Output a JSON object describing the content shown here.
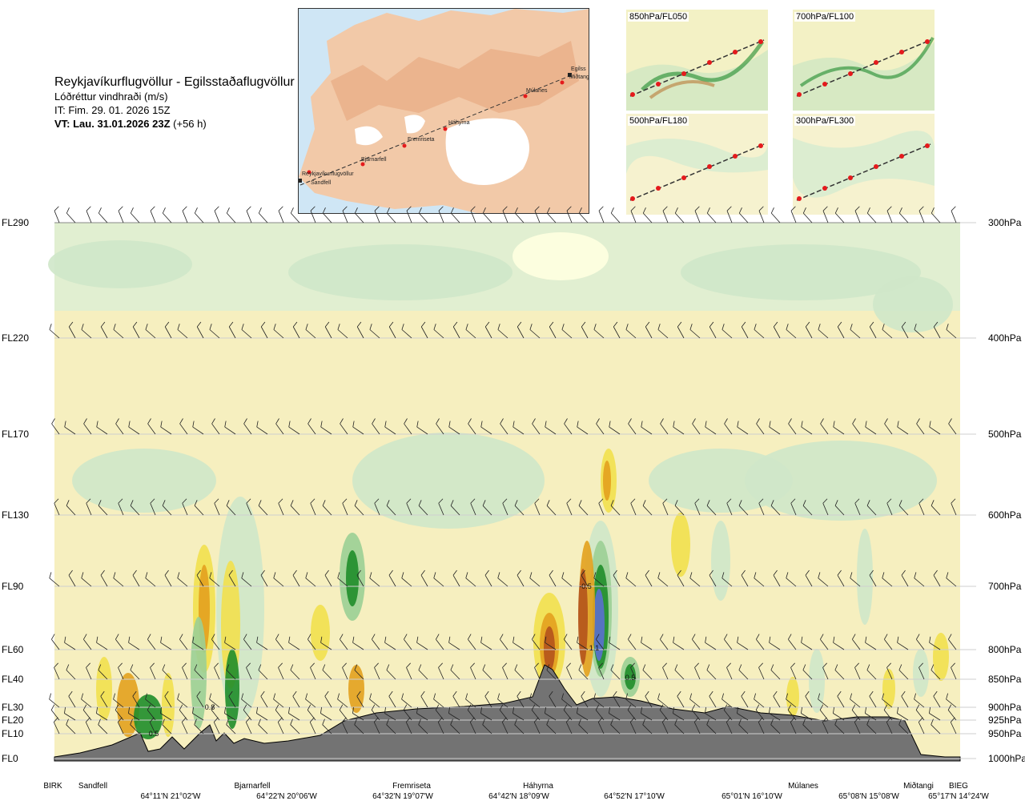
{
  "header": {
    "title": "Reykjavíkurflugvöllur - Egilsstaðaflugvöllur",
    "variable": "Lóðréttur vindhraði (m/s)",
    "init_time": "IT: Fim. 29. 01. 2026 15Z",
    "valid_time_bold": "VT: Lau. 31.01.2026 23Z",
    "valid_time_lead": "(+56 h)"
  },
  "map": {
    "points": [
      "Reykjavíkurflugvöllur",
      "Sandfell",
      "Bjarnarfell",
      "Fremriseta",
      "Háhyrna",
      "Múlanes",
      "Miðtangi",
      "Egilsstaðaflugvöllur"
    ],
    "visible_labels": [
      "Reykjavíkurflugvöllur",
      "Sandfell",
      "Bjarnarfell",
      "Fremriseta",
      "Háhyrna",
      "Múlanes",
      "Egilss",
      "Miðtangi"
    ]
  },
  "level_panels": [
    {
      "label": "850hPa/FL050"
    },
    {
      "label": "700hPa/FL100"
    },
    {
      "label": "500hPa/FL180"
    },
    {
      "label": "300hPa/FL300"
    }
  ],
  "chart_data": {
    "type": "heatmap",
    "title": "Reykjavíkurflugvöllur - Egilsstaðaflugvöllur",
    "field": "Lóðréttur vindhraði (m/s)",
    "y_left_ticks": [
      "FL290",
      "FL220",
      "FL170",
      "FL130",
      "FL90",
      "FL60",
      "FL40",
      "FL30",
      "FL20",
      "FL10",
      "FL0"
    ],
    "y_right_ticks": [
      "300hPa",
      "400hPa",
      "500hPa",
      "600hPa",
      "700hPa",
      "800hPa",
      "850hPa",
      "900hPa",
      "925hPa",
      "950hPa",
      "1000hPa"
    ],
    "y_right_values_hpa": [
      300,
      400,
      500,
      600,
      700,
      800,
      850,
      900,
      925,
      950,
      1000
    ],
    "x_stations": [
      "BIRK",
      "Sandfell",
      "Bjarnarfell",
      "Fremriseta",
      "Háhyrna",
      "Múlanes",
      "Miðtangi",
      "BIEG"
    ],
    "x_coords": [
      "64°11'N 21°02'W",
      "64°22'N 20°06'W",
      "64°32'N 19°07'W",
      "64°42'N 18°09'W",
      "64°52'N 17°10'W",
      "65°01'N 16°10'W",
      "65°08'N 15°08'W",
      "65°17'N 14°24'W"
    ],
    "contour_labels": [
      "0.5",
      "0.8",
      "-0.5",
      "1.1",
      "0.5"
    ],
    "terrain_peak_hpa": 840,
    "grid": true
  }
}
